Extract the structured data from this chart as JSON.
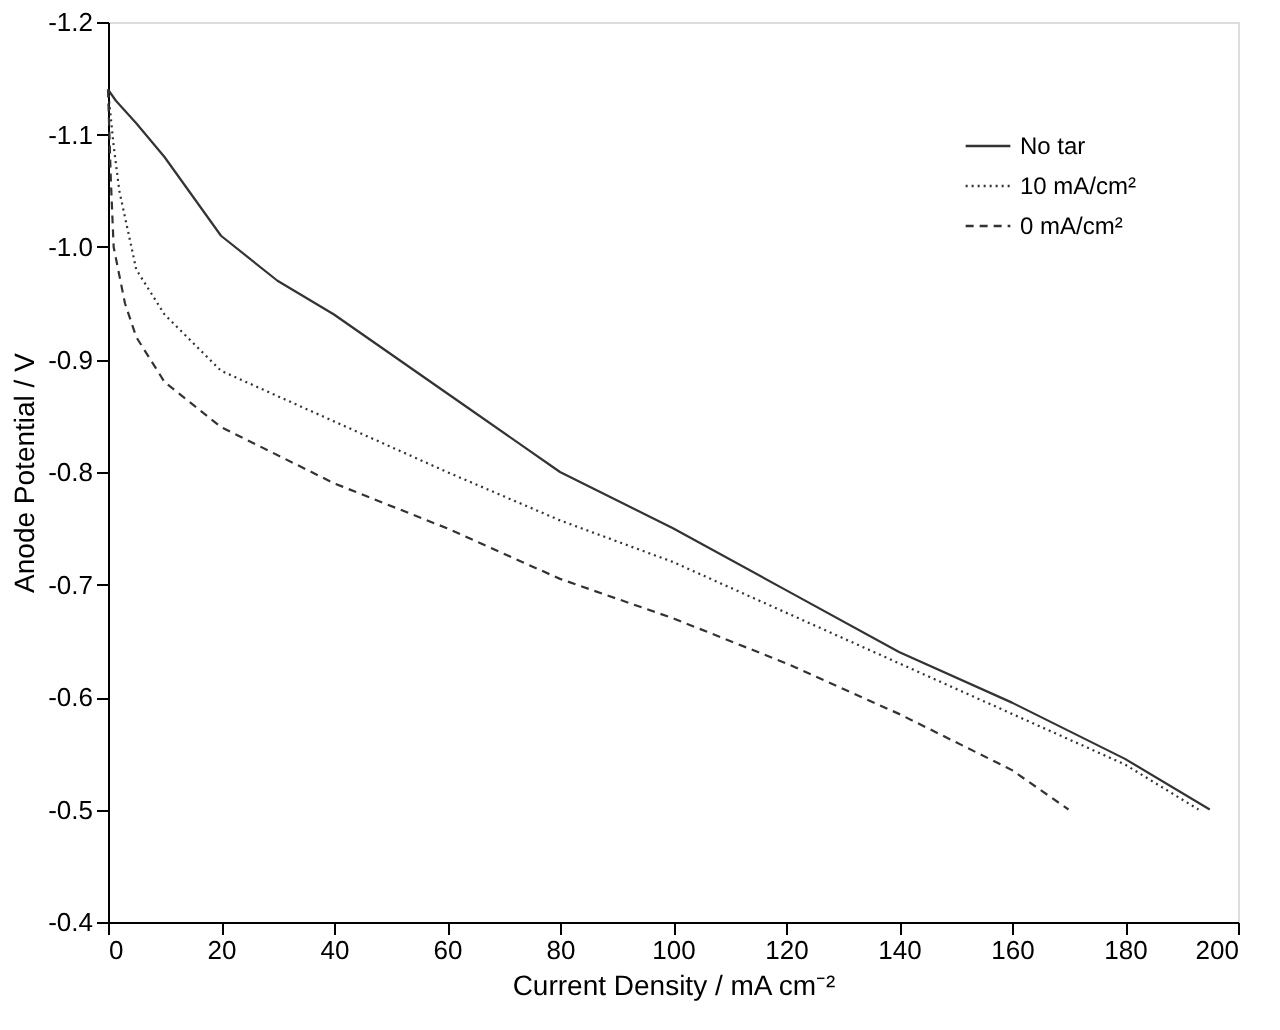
{
  "chart_data": {
    "type": "line",
    "xlabel": "Current Density / mA cm⁻²",
    "ylabel": "Anode Potential / V",
    "xlim": [
      0,
      200
    ],
    "xticks": [
      0,
      20,
      40,
      60,
      80,
      100,
      120,
      140,
      160,
      180,
      200
    ],
    "ylim": [
      -0.4,
      -1.2
    ],
    "yticks": [
      -1.2,
      -1.1,
      {
        "value": -1.0,
        "label": "-1.0"
      },
      -0.9,
      -0.8,
      -0.7,
      -0.6,
      -0.5,
      -0.4
    ],
    "grid": false,
    "legend": "top right",
    "marker": "none",
    "series": [
      {
        "name": "No tar",
        "color": "#333333",
        "line_style": "solid",
        "x": [
          0,
          1.4,
          5,
          10,
          20,
          30,
          40,
          60,
          80,
          100,
          120,
          140,
          160,
          180,
          195
        ],
        "values": [
          -1.14,
          -1.13,
          -1.11,
          -1.08,
          -1.01,
          -0.97,
          -0.94,
          -0.87,
          -0.8,
          -0.75,
          -0.695,
          -0.64,
          -0.595,
          -0.545,
          -0.5
        ]
      },
      {
        "name": "10 mA/cm²",
        "color": "#333333",
        "line_style": "dotted",
        "x": [
          0,
          1,
          2,
          5,
          10,
          20,
          40,
          60,
          80,
          100,
          120,
          140,
          160,
          180,
          193
        ],
        "values": [
          -1.14,
          -1.09,
          -1.05,
          -0.98,
          -0.94,
          -0.89,
          -0.845,
          -0.8,
          -0.757,
          -0.72,
          -0.675,
          -0.63,
          -0.585,
          -0.54,
          -0.5
        ]
      },
      {
        "name": "0 mA/cm²",
        "color": "#333333",
        "line_style": "dashed",
        "x": [
          0,
          0.5,
          1,
          3,
          5,
          10,
          20,
          40,
          60,
          80,
          100,
          120,
          140,
          160,
          170
        ],
        "values": [
          -1.14,
          -1.06,
          -1.0,
          -0.95,
          -0.92,
          -0.88,
          -0.84,
          -0.79,
          -0.75,
          -0.705,
          -0.67,
          -0.63,
          -0.585,
          -0.535,
          -0.5
        ]
      }
    ]
  }
}
